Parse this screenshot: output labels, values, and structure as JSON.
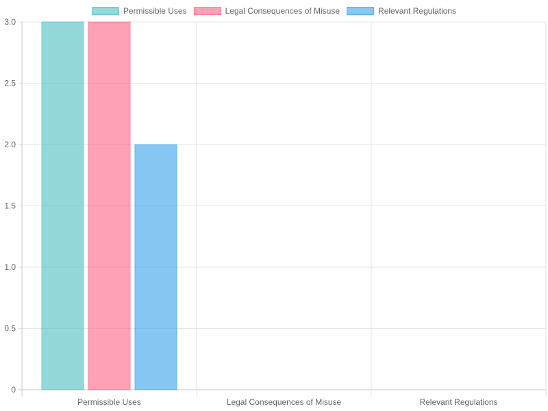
{
  "chart_data": {
    "type": "bar",
    "categories": [
      "Permissible Uses",
      "Legal Consequences of Misuse",
      "Relevant Regulations"
    ],
    "series": [
      {
        "name": "Permissible Uses",
        "values": [
          3,
          0,
          0
        ],
        "color": "#4bc0c0"
      },
      {
        "name": "Legal Consequences of Misuse",
        "values": [
          3,
          0,
          0
        ],
        "color": "#ff6384"
      },
      {
        "name": "Relevant Regulations",
        "values": [
          2,
          0,
          0
        ],
        "color": "#36a2eb"
      }
    ],
    "title": "",
    "xlabel": "",
    "ylabel": "",
    "ylim": [
      0,
      3
    ],
    "yticks": [
      "0",
      "0.5",
      "1.0",
      "1.5",
      "2.0",
      "2.5",
      "3.0"
    ],
    "grid": true,
    "legend_position": "top-center"
  }
}
